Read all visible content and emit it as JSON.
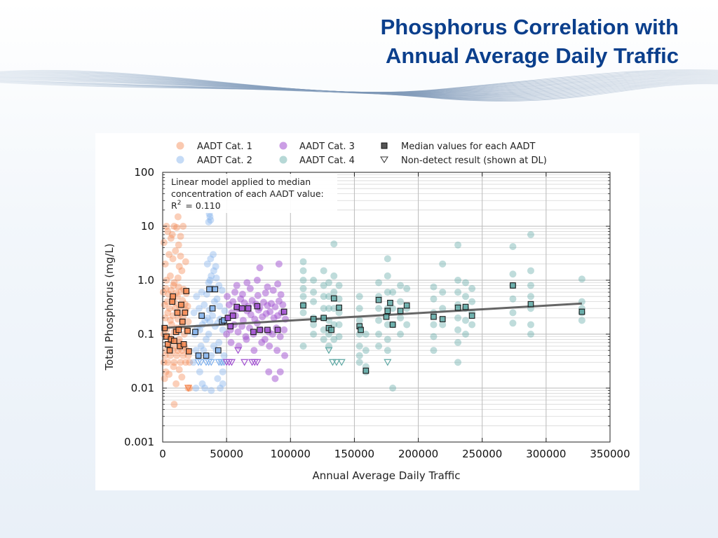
{
  "slide": {
    "title_line1": "Phosphorus Correlation with",
    "title_line2": "Annual Average Daily Traffic"
  },
  "colors": {
    "title": "#0b3f8c",
    "cat1": "#f5874f",
    "cat2": "#7fb0ec",
    "cat3": "#a04fd0",
    "cat4": "#5ea8a4",
    "median_edge": "#1a1a1a",
    "trend_line": "#555555"
  },
  "chart_data": {
    "type": "scatter",
    "xlabel": "Annual Average Daily Traffic",
    "ylabel": "Total Phosphorus (mg/L)",
    "xlim": [
      0,
      350000
    ],
    "ylim": [
      0.001,
      100
    ],
    "yscale": "log",
    "grid": true,
    "legend_position": "top",
    "x_ticks": [
      "0",
      "50000",
      "100000",
      "150000",
      "200000",
      "250000",
      "300000",
      "350000"
    ],
    "y_ticks": [
      "0.001",
      "0.01",
      "0.1",
      "1.0",
      "10",
      "100"
    ],
    "legend": [
      {
        "label": "AADT Cat. 1",
        "marker": "circle",
        "color": "#f5874f"
      },
      {
        "label": "AADT Cat. 2",
        "marker": "circle",
        "color": "#7fb0ec"
      },
      {
        "label": "AADT Cat. 3",
        "marker": "circle",
        "color": "#a04fd0"
      },
      {
        "label": "AADT Cat. 4",
        "marker": "circle",
        "color": "#5ea8a4"
      },
      {
        "label": "Median values for each AADT",
        "marker": "square",
        "color": "#555555"
      },
      {
        "label": "Non-detect result (shown at DL)",
        "marker": "triangle-down",
        "color": "#333333"
      }
    ],
    "annotation": {
      "line1": "Linear model applied to median",
      "line2": "concentration of each AADT value:",
      "r2_label": "R",
      "r2_sup": "2",
      "r2_value": "= 0.110"
    },
    "trend_line": {
      "x": [
        0,
        328000
      ],
      "y": [
        0.13,
        0.37
      ]
    },
    "series": [
      {
        "name": "AADT Cat. 1",
        "color": "#f5874f",
        "x": [
          1000,
          2000,
          3000,
          4000,
          5000,
          6000,
          7000,
          8000,
          9000,
          10000,
          11000,
          12000,
          13000,
          14000,
          15000,
          16000,
          17000,
          18000,
          19000,
          20000,
          21000,
          1000,
          3000,
          5000,
          7000,
          9000,
          11000,
          13000,
          15000,
          17000,
          19000,
          2000,
          4000,
          6000,
          8000,
          10000,
          12000,
          14000,
          16000,
          18000,
          20000,
          1500,
          3500,
          5500,
          7500,
          9500,
          11500,
          13500,
          15500,
          17500,
          19500,
          500,
          2500,
          4500,
          6500,
          8500,
          10500,
          12500,
          14500,
          16500,
          18500,
          3000,
          6000,
          9000,
          12000,
          15000,
          2000,
          8000,
          13000,
          18000,
          5000,
          10000,
          14000,
          1000,
          6500,
          12500,
          4000,
          16000,
          9000,
          3000,
          11000,
          7500,
          14000,
          2500,
          8500,
          13000,
          1500,
          5000,
          10500,
          15000,
          20000,
          21000,
          9000,
          12000
        ],
        "y": [
          0.03,
          0.04,
          0.05,
          0.03,
          0.06,
          0.04,
          0.08,
          0.05,
          0.03,
          0.06,
          0.04,
          0.05,
          0.07,
          0.03,
          0.05,
          0.04,
          0.06,
          0.03,
          0.05,
          0.04,
          0.03,
          0.1,
          0.12,
          0.09,
          0.15,
          0.11,
          0.13,
          0.08,
          0.14,
          0.1,
          0.12,
          0.2,
          0.25,
          0.18,
          0.22,
          0.3,
          0.19,
          0.24,
          0.21,
          0.28,
          0.17,
          0.35,
          0.4,
          0.3,
          0.45,
          0.38,
          0.5,
          0.32,
          0.42,
          0.36,
          0.33,
          0.6,
          0.7,
          0.55,
          0.65,
          0.8,
          0.58,
          0.75,
          0.62,
          0.68,
          0.57,
          1.0,
          1.2,
          0.9,
          1.1,
          1.5,
          2.0,
          2.5,
          1.8,
          2.2,
          3.0,
          3.5,
          2.8,
          5.0,
          6.0,
          4.5,
          8.0,
          10,
          10,
          10,
          9.5,
          7.0,
          6.5,
          0.02,
          0.025,
          0.022,
          0.015,
          0.018,
          0.012,
          0.016,
          0.01,
          0.01,
          0.005,
          15
        ],
        "nondetect_x": [
          20000
        ],
        "nondetect_y": [
          0.01
        ],
        "median_x": [
          1500,
          3000,
          4000,
          5500,
          6500,
          7500,
          8000,
          9000,
          10500,
          11500,
          12500,
          13500,
          14500,
          15500,
          16500,
          17500,
          18500,
          19500,
          20500
        ],
        "median_y": [
          0.13,
          0.09,
          0.065,
          0.05,
          0.08,
          0.4,
          0.5,
          0.075,
          0.11,
          0.25,
          0.12,
          0.06,
          0.35,
          0.17,
          0.065,
          0.25,
          0.63,
          0.115,
          0.048
        ]
      },
      {
        "name": "AADT Cat. 2",
        "color": "#7fb0ec",
        "x": [
          24000,
          26000,
          28000,
          30000,
          32000,
          34000,
          36000,
          38000,
          40000,
          42000,
          44000,
          46000,
          48000,
          25000,
          27000,
          29000,
          31000,
          33000,
          35000,
          37000,
          39000,
          41000,
          43000,
          45000,
          47000,
          24500,
          28500,
          32500,
          36500,
          40500,
          44500,
          48500,
          26500,
          30500,
          34500,
          38500,
          42500,
          46500,
          36000,
          37000,
          38000,
          40000,
          42000,
          44000,
          35000,
          37500,
          39500,
          41500,
          29000,
          33000,
          43000,
          47000,
          26000,
          31000,
          38000,
          36000,
          37000,
          36500,
          37500,
          45000,
          47000
        ],
        "y": [
          0.03,
          0.05,
          0.04,
          0.06,
          0.05,
          0.08,
          0.1,
          0.04,
          0.06,
          0.05,
          0.07,
          0.03,
          0.04,
          0.1,
          0.13,
          0.12,
          0.15,
          0.18,
          0.2,
          0.17,
          0.22,
          0.14,
          0.16,
          0.19,
          0.12,
          0.25,
          0.3,
          0.35,
          0.28,
          0.4,
          0.33,
          0.27,
          0.5,
          0.6,
          0.55,
          0.7,
          0.45,
          0.65,
          0.9,
          1.0,
          1.2,
          1.5,
          1.1,
          0.8,
          2.0,
          2.5,
          3.0,
          1.8,
          0.02,
          0.01,
          0.015,
          0.02,
          0.01,
          0.012,
          0.009,
          12,
          15,
          17,
          13,
          0.01,
          0.012
        ],
        "nondetect_x": [
          28000,
          30000,
          34000,
          36000,
          38000,
          44000,
          46000,
          48000
        ],
        "nondetect_y": [
          0.03,
          0.03,
          0.03,
          0.03,
          0.03,
          0.03,
          0.03,
          0.03
        ],
        "median_x": [
          25500,
          28000,
          30500,
          34000,
          36500,
          39000,
          41000,
          43500,
          46500,
          48000
        ],
        "median_y": [
          0.11,
          0.04,
          0.22,
          0.04,
          0.68,
          0.3,
          0.68,
          0.05,
          0.17,
          0.18
        ]
      },
      {
        "name": "AADT Cat. 3",
        "color": "#a04fd0",
        "x": [
          50000,
          53000,
          56000,
          59000,
          62000,
          65000,
          68000,
          71000,
          74000,
          77000,
          80000,
          83000,
          86000,
          89000,
          92000,
          95000,
          51000,
          54000,
          57000,
          60000,
          63000,
          66000,
          69000,
          72000,
          75000,
          78000,
          81000,
          84000,
          87000,
          90000,
          93000,
          96000,
          52000,
          55000,
          58000,
          61000,
          64000,
          67000,
          70000,
          73000,
          76000,
          79000,
          82000,
          85000,
          88000,
          91000,
          94000,
          50500,
          56500,
          62500,
          68500,
          74500,
          80500,
          86500,
          92500,
          53500,
          59500,
          65500,
          71500,
          77500,
          83500,
          89500,
          95500,
          58000,
          66000,
          74000,
          82000,
          90000,
          76000,
          91000,
          83000,
          88000,
          92000
        ],
        "y": [
          0.1,
          0.12,
          0.15,
          0.11,
          0.14,
          0.09,
          0.13,
          0.1,
          0.16,
          0.12,
          0.08,
          0.11,
          0.1,
          0.13,
          0.09,
          0.12,
          0.2,
          0.25,
          0.22,
          0.3,
          0.18,
          0.27,
          0.23,
          0.19,
          0.28,
          0.21,
          0.24,
          0.26,
          0.2,
          0.22,
          0.25,
          0.19,
          0.35,
          0.4,
          0.3,
          0.45,
          0.38,
          0.33,
          0.42,
          0.36,
          0.31,
          0.39,
          0.34,
          0.37,
          0.32,
          0.41,
          0.35,
          0.5,
          0.6,
          0.55,
          0.7,
          0.52,
          0.58,
          0.65,
          0.54,
          0.07,
          0.06,
          0.08,
          0.05,
          0.07,
          0.06,
          0.05,
          0.04,
          0.8,
          0.9,
          1.0,
          0.75,
          0.85,
          1.7,
          2.0,
          0.02,
          0.015,
          0.02
        ],
        "nondetect_x": [
          50000,
          52000,
          54000,
          59000,
          64000,
          70000,
          72000,
          74000
        ],
        "nondetect_y": [
          0.03,
          0.03,
          0.03,
          0.05,
          0.03,
          0.03,
          0.03,
          0.03
        ],
        "median_x": [
          51000,
          53000,
          55000,
          58000,
          62000,
          67000,
          71000,
          74000,
          76000,
          82000,
          90000,
          95000
        ],
        "median_y": [
          0.2,
          0.14,
          0.22,
          0.32,
          0.3,
          0.3,
          0.11,
          0.33,
          0.12,
          0.12,
          0.12,
          0.26
        ],
        "nondetect_sizes": []
      },
      {
        "name": "AADT Cat. 4",
        "color": "#5ea8a4",
        "x": [
          110000,
          110000,
          110000,
          110000,
          110000,
          110000,
          110000,
          110000,
          118000,
          118000,
          118000,
          118000,
          118000,
          118000,
          126000,
          126000,
          126000,
          126000,
          126000,
          126000,
          126000,
          130000,
          130000,
          130000,
          130000,
          130000,
          130000,
          134000,
          134000,
          134000,
          134000,
          134000,
          134000,
          138000,
          138000,
          138000,
          138000,
          138000,
          154000,
          154000,
          154000,
          154000,
          154000,
          154000,
          154000,
          159000,
          159000,
          159000,
          159000,
          169000,
          169000,
          169000,
          169000,
          169000,
          169000,
          176000,
          176000,
          176000,
          176000,
          176000,
          176000,
          176000,
          180000,
          180000,
          180000,
          180000,
          186000,
          186000,
          186000,
          186000,
          191000,
          191000,
          191000,
          212000,
          212000,
          212000,
          212000,
          212000,
          212000,
          219000,
          219000,
          219000,
          219000,
          231000,
          231000,
          231000,
          231000,
          231000,
          231000,
          231000,
          231000,
          237000,
          237000,
          237000,
          237000,
          237000,
          242000,
          242000,
          242000,
          242000,
          274000,
          274000,
          274000,
          274000,
          274000,
          274000,
          288000,
          288000,
          288000,
          288000,
          288000,
          288000,
          288000,
          328000,
          328000,
          328000,
          328000,
          328000
        ],
        "y": [
          2.2,
          1.5,
          1.0,
          0.7,
          0.5,
          0.35,
          0.25,
          0.06,
          1.0,
          0.6,
          0.4,
          0.2,
          0.15,
          0.1,
          1.5,
          0.8,
          0.5,
          0.3,
          0.2,
          0.12,
          0.08,
          0.9,
          0.5,
          0.3,
          0.18,
          0.1,
          0.06,
          4.7,
          1.2,
          0.6,
          0.3,
          0.15,
          0.08,
          0.8,
          0.45,
          0.25,
          0.15,
          0.09,
          0.5,
          0.3,
          0.18,
          0.1,
          0.06,
          0.04,
          0.03,
          0.1,
          0.05,
          0.025,
          0.02,
          0.9,
          0.5,
          0.3,
          0.18,
          0.1,
          0.06,
          2.5,
          1.2,
          0.6,
          0.3,
          0.15,
          0.08,
          0.05,
          0.6,
          0.3,
          0.15,
          0.01,
          0.8,
          0.4,
          0.2,
          0.1,
          0.7,
          0.3,
          0.15,
          0.75,
          0.45,
          0.25,
          0.15,
          0.09,
          0.05,
          2.0,
          0.6,
          0.3,
          0.15,
          4.5,
          1.0,
          0.6,
          0.35,
          0.2,
          0.12,
          0.07,
          0.03,
          0.9,
          0.5,
          0.3,
          0.18,
          0.1,
          0.7,
          0.4,
          0.25,
          0.15,
          4.2,
          1.3,
          0.8,
          0.45,
          0.25,
          0.16,
          7.0,
          1.5,
          0.8,
          0.5,
          0.3,
          0.15,
          0.1,
          1.05,
          0.4,
          0.25,
          0.18,
          0.3
        ],
        "nondetect_x": [
          130000,
          133000,
          136000,
          140000,
          176000
        ],
        "nondetect_y": [
          0.05,
          0.03,
          0.03,
          0.03,
          0.03
        ],
        "median_x": [
          110000,
          118000,
          126000,
          130000,
          132000,
          134000,
          138000,
          154000,
          155000,
          159000,
          169000,
          175000,
          176000,
          178000,
          180000,
          186000,
          191000,
          212000,
          219000,
          231000,
          237000,
          242000,
          274000,
          288000,
          328000
        ],
        "median_y": [
          0.34,
          0.19,
          0.2,
          0.13,
          0.12,
          0.46,
          0.31,
          0.14,
          0.12,
          0.021,
          0.43,
          0.21,
          0.27,
          0.38,
          0.15,
          0.27,
          0.34,
          0.21,
          0.19,
          0.31,
          0.32,
          0.22,
          0.8,
          0.36,
          0.26
        ]
      }
    ]
  }
}
